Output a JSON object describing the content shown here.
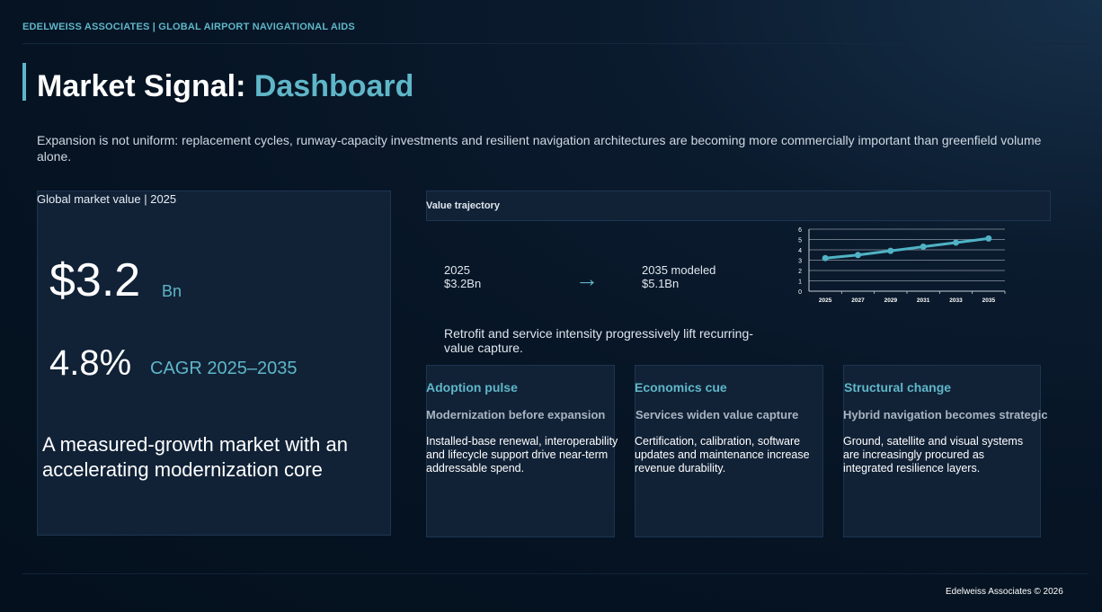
{
  "header": {
    "topbar": "EDELWEISS ASSOCIATES | GLOBAL AIRPORT NAVIGATIONAL AIDS",
    "title_main": "Market Signal: ",
    "title_accent": "Dashboard",
    "subtitle": "Expansion is not uniform: replacement cycles, runway-capacity investments and resilient navigation architectures are becoming more commercially important than greenfield volume alone."
  },
  "left_panel": {
    "label": "Global market value | 2025",
    "value": "$3.2",
    "unit": "Bn",
    "cagr_value": "4.8%",
    "cagr_label": "CAGR 2025–2035",
    "statement": "A measured-growth market with an accelerating modernization core"
  },
  "trajectory": {
    "title": "Value trajectory",
    "start_year": "2025",
    "start_value": "$3.2Bn",
    "arrow": "→",
    "end_year": "2035 modeled",
    "end_value": "$5.1Bn",
    "note": "Retrofit and service intensity progressively lift recurring-value capture."
  },
  "chart_data": {
    "type": "line",
    "x": [
      "2025",
      "2027",
      "2029",
      "2031",
      "2033",
      "2035"
    ],
    "series": [
      {
        "values": [
          3.2,
          3.5,
          3.9,
          4.3,
          4.7,
          5.1
        ]
      }
    ],
    "ylim": [
      0,
      6
    ],
    "yticks": [
      "0",
      "1",
      "2",
      "3",
      "4",
      "5",
      "6"
    ],
    "grid": true,
    "line_color": "#4fb3c5"
  },
  "cards": [
    {
      "title": "Adoption pulse",
      "subtitle": "Modernization before expansion",
      "body": "Installed-base renewal, interoperability and lifecycle support drive near-term addressable spend."
    },
    {
      "title": "Economics cue",
      "subtitle": "Services widen value capture",
      "body": "Certification, calibration, software updates and maintenance increase revenue durability."
    },
    {
      "title": "Structural change",
      "subtitle": "Hybrid navigation becomes strategic",
      "body": "Ground, satellite and visual systems are increasingly procured as integrated resilience layers."
    }
  ],
  "footer": {
    "text": "Edelweiss Associates © 2026"
  },
  "colors": {
    "accent": "#5fb6c8",
    "background": "#061424",
    "panel": "#112237"
  }
}
